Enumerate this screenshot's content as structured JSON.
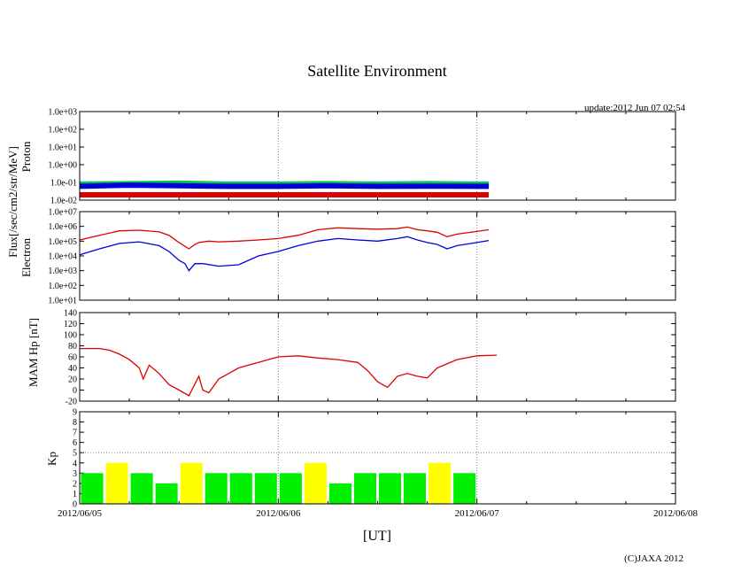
{
  "chart_data": {
    "type": "line",
    "title": "Satellite Environment",
    "update_label": "update:2012 Jun 07 02:54",
    "copyright": "(C)JAXA 2012",
    "xlabel": "[UT]",
    "x_ticks": [
      "2012/06/05",
      "2012/06/06",
      "2012/06/07",
      "2012/06/08"
    ],
    "x_range_days": [
      0,
      3
    ],
    "grid": "dotted vertical at daily ticks",
    "shared_ylabel": "Flux[/sec/cm2/str/MeV]",
    "panels": [
      {
        "name": "proton",
        "ylabel": "Proton",
        "scale": "log",
        "ylim": [
          0.01,
          1000
        ],
        "tick_labels": [
          "1.0e-02",
          "1.0e-01",
          "1.0e+00",
          "1.0e+01",
          "1.0e+02",
          "1.0e+03"
        ],
        "series": [
          {
            "name": "proton-green",
            "color": "#00cc44",
            "x": [
              0,
              0.25,
              0.5,
              0.75,
              1.0,
              1.25,
              1.5,
              1.75,
              2.0,
              2.06
            ],
            "y": [
              0.08,
              0.085,
              0.09,
              0.08,
              0.08,
              0.085,
              0.08,
              0.085,
              0.08,
              0.08
            ]
          },
          {
            "name": "proton-blue",
            "color": "#0000dd",
            "x": [
              0,
              0.25,
              0.5,
              0.75,
              1.0,
              1.25,
              1.5,
              1.75,
              2.0,
              2.06
            ],
            "y": [
              0.06,
              0.07,
              0.065,
              0.06,
              0.06,
              0.065,
              0.06,
              0.062,
              0.06,
              0.06
            ]
          },
          {
            "name": "proton-red",
            "color": "#dd0000",
            "x": [
              0,
              0.25,
              0.5,
              0.75,
              1.0,
              1.25,
              1.5,
              1.75,
              2.0,
              2.06
            ],
            "y": [
              0.02,
              0.02,
              0.02,
              0.02,
              0.02,
              0.02,
              0.02,
              0.02,
              0.02,
              0.02
            ]
          }
        ]
      },
      {
        "name": "electron",
        "ylabel": "Electron",
        "scale": "log",
        "ylim": [
          10,
          10000000
        ],
        "tick_labels": [
          "1.0e+01",
          "1.0e+02",
          "1.0e+03",
          "1.0e+04",
          "1.0e+05",
          "1.0e+06",
          "1.0e+07"
        ],
        "series": [
          {
            "name": "electron-red",
            "color": "#dd0000",
            "x": [
              0,
              0.1,
              0.2,
              0.3,
              0.4,
              0.45,
              0.5,
              0.55,
              0.58,
              0.6,
              0.65,
              0.7,
              0.8,
              0.9,
              1.0,
              1.1,
              1.2,
              1.3,
              1.4,
              1.5,
              1.6,
              1.65,
              1.7,
              1.75,
              1.8,
              1.85,
              1.9,
              2.0,
              2.06
            ],
            "y": [
              120000,
              250000,
              500000,
              550000,
              420000,
              250000,
              80000,
              30000,
              60000,
              80000,
              100000,
              90000,
              100000,
              120000,
              150000,
              250000,
              600000,
              800000,
              700000,
              650000,
              700000,
              900000,
              600000,
              500000,
              400000,
              200000,
              300000,
              450000,
              600000
            ]
          },
          {
            "name": "electron-blue",
            "color": "#0000dd",
            "x": [
              0,
              0.1,
              0.2,
              0.3,
              0.4,
              0.45,
              0.5,
              0.53,
              0.55,
              0.58,
              0.62,
              0.7,
              0.8,
              0.9,
              1.0,
              1.1,
              1.2,
              1.3,
              1.4,
              1.5,
              1.6,
              1.65,
              1.7,
              1.75,
              1.8,
              1.85,
              1.9,
              2.0,
              2.06
            ],
            "y": [
              12000,
              30000,
              70000,
              90000,
              50000,
              20000,
              5000,
              3000,
              1000,
              3000,
              3000,
              2000,
              2500,
              10000,
              20000,
              50000,
              100000,
              150000,
              120000,
              100000,
              150000,
              200000,
              120000,
              80000,
              60000,
              30000,
              50000,
              80000,
              110000
            ]
          }
        ]
      },
      {
        "name": "mam-hp",
        "ylabel": "MAM Hp [nT]",
        "scale": "linear",
        "ylim": [
          -20,
          140
        ],
        "tick_labels": [
          "-20",
          "0",
          "20",
          "40",
          "60",
          "80",
          "100",
          "120",
          "140"
        ],
        "series": [
          {
            "name": "hp-red",
            "color": "#dd0000",
            "x": [
              0,
              0.1,
              0.15,
              0.2,
              0.25,
              0.3,
              0.32,
              0.35,
              0.4,
              0.45,
              0.5,
              0.55,
              0.6,
              0.62,
              0.65,
              0.68,
              0.7,
              0.75,
              0.8,
              0.9,
              1.0,
              1.1,
              1.2,
              1.3,
              1.4,
              1.45,
              1.5,
              1.55,
              1.6,
              1.65,
              1.7,
              1.75,
              1.8,
              1.9,
              2.0,
              2.1
            ],
            "y": [
              75,
              75,
              72,
              65,
              55,
              40,
              20,
              45,
              30,
              10,
              0,
              -10,
              25,
              0,
              -5,
              10,
              20,
              30,
              40,
              50,
              60,
              62,
              58,
              55,
              50,
              35,
              15,
              5,
              25,
              30,
              25,
              22,
              40,
              55,
              62,
              63
            ]
          }
        ]
      },
      {
        "name": "kp",
        "ylabel": "Kp",
        "type": "bar",
        "ylim": [
          0,
          9
        ],
        "tick_labels": [
          "0",
          "1",
          "2",
          "3",
          "4",
          "5",
          "6",
          "7",
          "8",
          "9"
        ],
        "bin_hours": 3,
        "values": [
          3,
          4,
          3,
          2,
          4,
          3,
          3,
          3,
          3,
          4,
          2,
          3,
          3,
          3,
          4,
          3
        ],
        "colors": {
          "normal": "#00ee00",
          "active": "#ffff00"
        },
        "active_threshold": 4
      }
    ]
  }
}
